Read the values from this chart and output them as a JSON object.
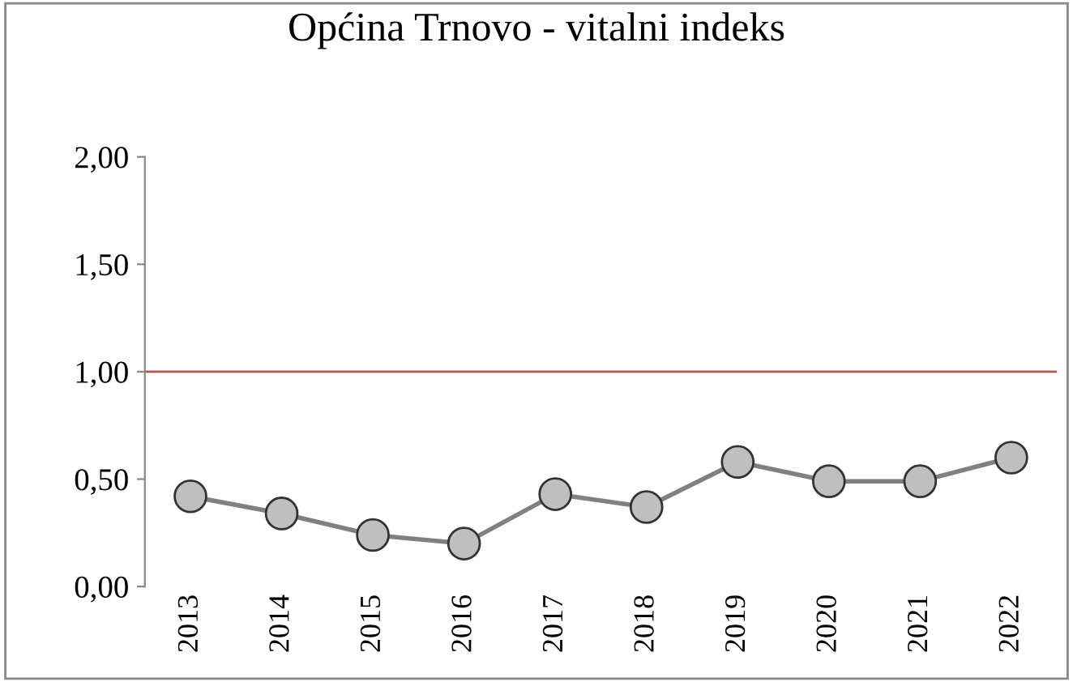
{
  "chart_data": {
    "type": "line",
    "title": "Općina Trnovo - vitalni indeks",
    "categories": [
      "2013",
      "2014",
      "2015",
      "2016",
      "2017",
      "2018",
      "2019",
      "2020",
      "2021",
      "2022"
    ],
    "series": [
      {
        "color": "#808080",
        "values": [
          0.42,
          0.34,
          0.24,
          0.2,
          0.43,
          0.37,
          0.58,
          0.49,
          0.49,
          0.6
        ]
      }
    ],
    "marker": "circle",
    "line_style": "solid",
    "ylim": [
      0,
      2
    ],
    "yticks": [
      {
        "value": 0,
        "label": "0,00"
      },
      {
        "value": 0.5,
        "label": "0,50"
      },
      {
        "value": 1,
        "label": "1,00"
      },
      {
        "value": 1.5,
        "label": "1,50"
      },
      {
        "value": 2,
        "label": "2,00"
      }
    ],
    "ref_lines": [
      {
        "axis": "y",
        "value": 1,
        "color": "#c0504d"
      }
    ],
    "grid": false,
    "legend": false
  }
}
